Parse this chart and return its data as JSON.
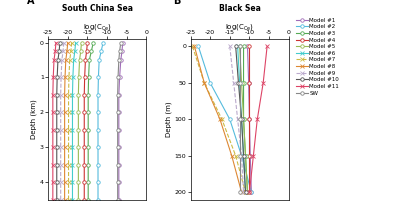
{
  "title_A": "South China Sea",
  "title_B": "Black Sea",
  "ylabel_A": "Depth (km)",
  "ylabel_B": "Depth (m)",
  "xlim_A": [
    -25,
    0
  ],
  "xlim_B": [
    -25,
    0
  ],
  "xticks": [
    -25,
    -20,
    -15,
    -10,
    -5,
    0
  ],
  "ylim_A": [
    4.5,
    -0.1
  ],
  "ylim_B": [
    210,
    -10
  ],
  "yticks_A": [
    0,
    1,
    2,
    3,
    4
  ],
  "yticks_B": [
    0,
    50,
    100,
    150,
    200
  ],
  "models": [
    {
      "name": "Model #1",
      "color": "#a06db8",
      "marker": "o",
      "linestyle": "-",
      "ms": 2.5
    },
    {
      "name": "Model #2",
      "color": "#55bbdd",
      "marker": "o",
      "linestyle": "-",
      "ms": 2.5
    },
    {
      "name": "Model #3",
      "color": "#55aa55",
      "marker": "o",
      "linestyle": "-",
      "ms": 2.5
    },
    {
      "name": "Model #4",
      "color": "#cc3333",
      "marker": "o",
      "linestyle": "-",
      "ms": 2.5
    },
    {
      "name": "Model #5",
      "color": "#99bb55",
      "marker": "o",
      "linestyle": "-",
      "ms": 2.5
    },
    {
      "name": "Model #6",
      "color": "#44cccc",
      "marker": "x",
      "linestyle": "-",
      "ms": 2.5
    },
    {
      "name": "Model #7",
      "color": "#ccbb44",
      "marker": "x",
      "linestyle": "--",
      "ms": 2.5
    },
    {
      "name": "Model #8",
      "color": "#dd8833",
      "marker": "x",
      "linestyle": "-",
      "ms": 2.5
    },
    {
      "name": "Model #9",
      "color": "#bbaacc",
      "marker": "x",
      "linestyle": "--",
      "ms": 2.5
    },
    {
      "name": "Model #10",
      "color": "#555555",
      "marker": "o",
      "linestyle": "-",
      "ms": 2.5
    },
    {
      "name": "Model #11",
      "color": "#dd4466",
      "marker": "x",
      "linestyle": "-",
      "ms": 2.5
    },
    {
      "name": "SW",
      "color": "#888888",
      "marker": "o",
      "linestyle": "-",
      "ms": 2.5
    }
  ],
  "scs_depths_km": [
    0.0,
    0.25,
    0.5,
    1.0,
    1.5,
    2.0,
    2.5,
    3.0,
    3.5,
    4.0,
    4.5
  ],
  "scs_data": {
    "Model #1": [
      -6.0,
      -6.2,
      -6.5,
      -6.8,
      -7.0,
      -7.0,
      -7.0,
      -7.0,
      -7.0,
      -7.0,
      -7.0
    ],
    "Model #2": [
      -11.0,
      -11.5,
      -12.0,
      -12.2,
      -12.3,
      -12.3,
      -12.3,
      -12.3,
      -12.3,
      -12.3,
      -12.3
    ],
    "Model #3": [
      -13.5,
      -14.0,
      -14.5,
      -14.7,
      -14.8,
      -14.8,
      -14.8,
      -14.8,
      -14.8,
      -14.8,
      -14.8
    ],
    "Model #4": [
      -15.0,
      -15.2,
      -15.5,
      -15.7,
      -15.8,
      -15.8,
      -15.8,
      -15.8,
      -15.8,
      -15.8,
      -15.8
    ],
    "Model #5": [
      -16.5,
      -16.7,
      -17.0,
      -17.2,
      -17.3,
      -17.3,
      -17.3,
      -17.3,
      -17.3,
      -17.3,
      -17.3
    ],
    "Model #6": [
      -18.0,
      -18.2,
      -18.5,
      -18.7,
      -18.8,
      -18.8,
      -18.8,
      -18.8,
      -18.8,
      -18.8,
      -18.8
    ],
    "Model #7": [
      -19.0,
      -19.2,
      -19.5,
      -19.7,
      -19.8,
      -19.8,
      -19.8,
      -19.8,
      -19.8,
      -19.8,
      -19.8
    ],
    "Model #8": [
      -20.0,
      -20.2,
      -20.5,
      -20.7,
      -20.8,
      -20.8,
      -20.8,
      -20.8,
      -20.8,
      -20.8,
      -20.8
    ],
    "Model #9": [
      -21.0,
      -21.2,
      -21.5,
      -21.7,
      -21.8,
      -21.8,
      -21.8,
      -21.8,
      -21.8,
      -21.8,
      -21.8
    ],
    "Model #10": [
      -22.0,
      -22.2,
      -22.5,
      -22.7,
      -22.8,
      -22.8,
      -22.8,
      -22.8,
      -22.8,
      -22.8,
      -22.8
    ],
    "Model #11": [
      -23.0,
      -23.2,
      -23.5,
      -23.7,
      -23.8,
      -23.8,
      -23.8,
      -23.8,
      -23.8,
      -23.8,
      -23.8
    ],
    "SW": [
      -6.5,
      -6.8,
      -7.0,
      -7.2,
      -7.3,
      -7.3,
      -7.3,
      -7.3,
      -7.3,
      -7.3,
      -7.3
    ]
  },
  "bs_depths_m": [
    0,
    50,
    100,
    150,
    200
  ],
  "bs_data": {
    "Model #1": [
      -10.5,
      -10.2,
      -10.0,
      -9.8,
      -9.5
    ],
    "Model #2": [
      -23.0,
      -20.0,
      -15.0,
      -12.0,
      -9.5
    ],
    "Model #3": [
      -11.5,
      -11.5,
      -11.5,
      -11.0,
      -10.5
    ],
    "Model #4": [
      -10.0,
      -10.0,
      -10.0,
      -10.0,
      -10.0
    ],
    "Model #5": [
      -12.5,
      -12.0,
      -11.5,
      -11.0,
      -10.5
    ],
    "Model #6": [
      -13.0,
      -12.5,
      -12.0,
      -11.5,
      -11.0
    ],
    "Model #7": [
      -24.5,
      -21.5,
      -17.0,
      -13.5,
      -11.0
    ],
    "Model #8": [
      -24.0,
      -21.5,
      -17.5,
      -14.5,
      -12.0
    ],
    "Model #9": [
      -15.0,
      -14.0,
      -13.0,
      -12.0,
      -11.5
    ],
    "Model #10": [
      -13.5,
      -12.8,
      -12.0,
      -11.5,
      -11.0
    ],
    "Model #11": [
      -5.5,
      -6.5,
      -8.0,
      -9.0,
      -10.0
    ],
    "SW": [
      -12.5,
      -12.5,
      -12.5,
      -12.5,
      -12.5
    ]
  }
}
